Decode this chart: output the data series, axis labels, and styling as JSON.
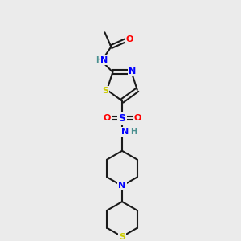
{
  "bg_color": "#ebebeb",
  "bond_color": "#1a1a1a",
  "bond_lw": 1.5,
  "atom_colors": {
    "N": "#0000ff",
    "O": "#ff0000",
    "S": "#cccc00",
    "S_sulfonyl": "#0000ff",
    "H": "#4a9090",
    "C": "#1a1a1a"
  },
  "font_size": 7.5
}
